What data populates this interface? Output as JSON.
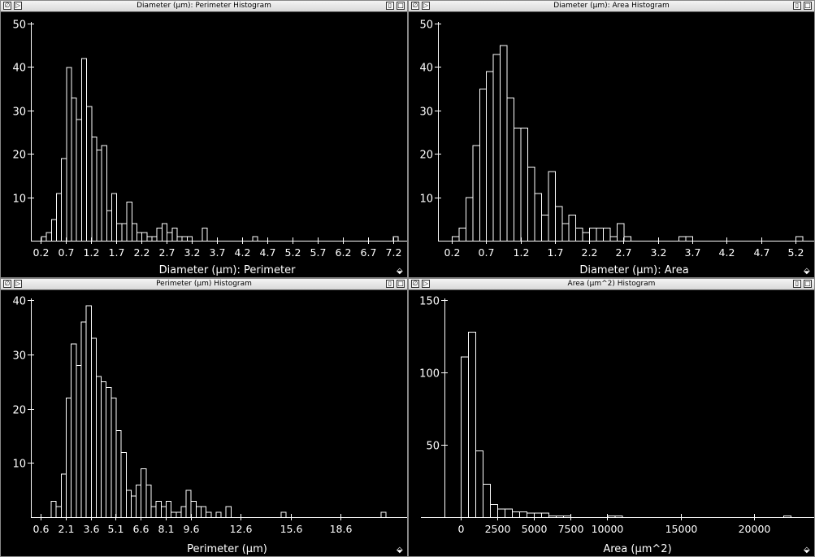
{
  "windows": [
    {
      "title": "Diameter (µm): Perimeter Histogram",
      "chart_data": {
        "type": "bar",
        "xlabel": "Diameter (µm): Perimeter",
        "ylabel": "",
        "xlim": [
          0.0,
          7.45
        ],
        "ylim": [
          0,
          50
        ],
        "xticks": [
          0.2,
          0.7,
          1.2,
          1.7,
          2.2,
          2.7,
          3.2,
          3.7,
          4.2,
          4.7,
          5.2,
          5.7,
          6.2,
          6.7,
          7.2
        ],
        "xtick_labels": [
          "0.2",
          "0.7",
          "1.2",
          "1.7",
          "2.2",
          "2.7",
          "3.2",
          "3.7",
          "4.2",
          "4.7",
          "5.2",
          "5.7",
          "6.2",
          "6.7",
          "7.2"
        ],
        "yticks": [
          10,
          20,
          30,
          40,
          50
        ],
        "bin_start": 0.2,
        "bin_width": 0.1,
        "counts": [
          1,
          2,
          5,
          11,
          19,
          40,
          33,
          28,
          42,
          31,
          24,
          21,
          22,
          7,
          11,
          4,
          4,
          9,
          4,
          2,
          2,
          1,
          1,
          3,
          4,
          2,
          3,
          1,
          1,
          1,
          0,
          0,
          3,
          0,
          0,
          0,
          0,
          0,
          0,
          0,
          0,
          0,
          1,
          0,
          0,
          0,
          0,
          0,
          0,
          0,
          0,
          0,
          0,
          0,
          0,
          0,
          0,
          0,
          0,
          0,
          0,
          0,
          0,
          0,
          0,
          0,
          0,
          0,
          0,
          0,
          1,
          0
        ]
      }
    },
    {
      "title": "Diameter (µm): Area Histogram",
      "chart_data": {
        "type": "bar",
        "xlabel": "Diameter (µm): Area",
        "ylabel": "",
        "xlim": [
          0.0,
          5.45
        ],
        "ylim": [
          0,
          50
        ],
        "xticks": [
          0.2,
          0.7,
          1.2,
          1.7,
          2.2,
          2.7,
          3.2,
          3.7,
          4.2,
          4.7,
          5.2
        ],
        "xtick_labels": [
          "0.2",
          "0.7",
          "1.2",
          "1.7",
          "2.2",
          "2.7",
          "3.2",
          "3.7",
          "4.2",
          "4.7",
          "5.2"
        ],
        "yticks": [
          10,
          20,
          30,
          40,
          50
        ],
        "bin_start": 0.2,
        "bin_width": 0.1,
        "counts": [
          1,
          3,
          10,
          22,
          35,
          39,
          43,
          45,
          33,
          26,
          26,
          17,
          11,
          6,
          16,
          8,
          4,
          6,
          3,
          2,
          3,
          3,
          3,
          1,
          4,
          1,
          0,
          0,
          0,
          0,
          0,
          0,
          0,
          1,
          1,
          0,
          0,
          0,
          0,
          0,
          0,
          0,
          0,
          0,
          0,
          0,
          0,
          0,
          0,
          0,
          1
        ]
      }
    },
    {
      "title": "Perimeter (µm) Histogram",
      "chart_data": {
        "type": "bar",
        "xlabel": "Perimeter (µm)",
        "ylabel": "",
        "xlim": [
          0.0,
          22.5
        ],
        "ylim": [
          0,
          40
        ],
        "xticks": [
          0.6,
          2.1,
          3.6,
          5.1,
          6.6,
          8.1,
          9.6,
          12.6,
          15.6,
          18.6
        ],
        "xtick_labels": [
          "0.6",
          "2.1",
          "3.6",
          "5.1",
          "6.6",
          "8.1",
          "9.6",
          "12.6",
          "15.6",
          "18.6"
        ],
        "yticks": [
          10,
          20,
          30,
          40
        ],
        "bin_start": 1.2,
        "bin_width": 0.3,
        "counts": [
          3,
          2,
          8,
          22,
          32,
          28,
          36,
          39,
          33,
          26,
          25,
          24,
          22,
          16,
          12,
          5,
          4,
          6,
          9,
          6,
          2,
          3,
          2,
          3,
          1,
          1,
          2,
          5,
          3,
          2,
          2,
          1,
          0,
          1,
          0,
          2,
          0,
          0,
          0,
          0,
          0,
          0,
          0,
          0,
          0,
          0,
          1,
          0,
          0,
          0,
          0,
          0,
          0,
          0,
          0,
          0,
          0,
          0,
          0,
          0,
          0,
          0,
          0,
          0,
          0,
          0,
          1
        ]
      }
    },
    {
      "title": "Area (µm^2) Histogram",
      "chart_data": {
        "type": "bar",
        "xlabel": "Area (µm^2)",
        "ylabel": "",
        "xlim": [
          -1100,
          24000
        ],
        "ylim": [
          0,
          150
        ],
        "xticks": [
          0,
          2500,
          5000,
          7500,
          10000,
          15000,
          20000
        ],
        "xtick_labels": [
          "0",
          "2500",
          "5000",
          "7500",
          "10000",
          "15000",
          "20000"
        ],
        "yticks": [
          50,
          100,
          150
        ],
        "bin_start": 0,
        "bin_width": 500,
        "counts": [
          111,
          128,
          46,
          23,
          9,
          6,
          6,
          4,
          4,
          3,
          3,
          3,
          1,
          1,
          1,
          0,
          0,
          0,
          0,
          0,
          1,
          1,
          0,
          0,
          0,
          0,
          0,
          0,
          0,
          0,
          0,
          0,
          0,
          0,
          0,
          0,
          0,
          0,
          0,
          0,
          0,
          0,
          0,
          0,
          1,
          0
        ]
      }
    }
  ]
}
